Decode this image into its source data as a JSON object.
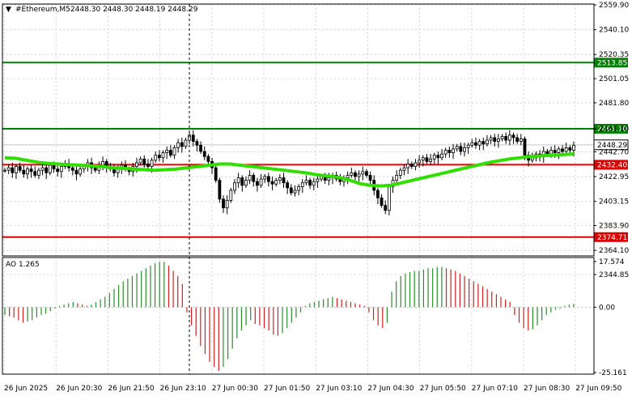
{
  "window": {
    "symbol": "#Ethereum,M5",
    "ohlc": "2448.30 2448.30 2448.19 2448.29",
    "menu_icon": "triangle-down-icon"
  },
  "colors": {
    "grid": "#c8c8c8",
    "candle": "#000000",
    "ma_line": "#33dd00",
    "support": "#dd0000",
    "resistance": "#008000",
    "ao_up": "#2e8b2e",
    "ao_down": "#cc2222",
    "cursor": "#000000"
  },
  "chart_data": [
    {
      "type": "candlestick",
      "title": "#Ethereum,M5",
      "ylim": [
        2344.85,
        2559.9
      ],
      "y_ticks": [
        "2559.90",
        "2540.10",
        "2520.35",
        "2501.05",
        "2481.80",
        "2461.10",
        "2442.70",
        "2422.95",
        "2403.15",
        "2383.90",
        "2364.10",
        "2344.85"
      ],
      "current_price": "2448.29",
      "levels": [
        {
          "value": 2513.85,
          "label": "2513.85",
          "kind": "resistance"
        },
        {
          "value": 2461.1,
          "label": "2461.10",
          "kind": "resistance"
        },
        {
          "value": 2432.4,
          "label": "2432.40",
          "kind": "support"
        },
        {
          "value": 2374.71,
          "label": "2374.71",
          "kind": "support"
        }
      ],
      "close": [
        2428,
        2430,
        2426,
        2431,
        2428,
        2425,
        2429,
        2427,
        2424,
        2428,
        2430,
        2426,
        2432,
        2429,
        2427,
        2431,
        2433,
        2430,
        2428,
        2425,
        2429,
        2431,
        2434,
        2430,
        2428,
        2432,
        2435,
        2431,
        2429,
        2426,
        2430,
        2432,
        2429,
        2427,
        2431,
        2434,
        2437,
        2433,
        2431,
        2436,
        2440,
        2438,
        2442,
        2444,
        2440,
        2446,
        2450,
        2447,
        2452,
        2456,
        2451,
        2448,
        2443,
        2439,
        2435,
        2430,
        2420,
        2405,
        2398,
        2404,
        2412,
        2418,
        2422,
        2416,
        2420,
        2424,
        2419,
        2416,
        2421,
        2423,
        2419,
        2417,
        2420,
        2422,
        2418,
        2414,
        2410,
        2412,
        2415,
        2418,
        2420,
        2416,
        2419,
        2421,
        2423,
        2420,
        2422,
        2424,
        2421,
        2419,
        2422,
        2424,
        2426,
        2423,
        2425,
        2427,
        2424,
        2420,
        2412,
        2406,
        2400,
        2396,
        2415,
        2420,
        2424,
        2428,
        2430,
        2433,
        2431,
        2434,
        2436,
        2438,
        2435,
        2437,
        2440,
        2438,
        2441,
        2444,
        2442,
        2445,
        2447,
        2443,
        2446,
        2448,
        2450,
        2448,
        2451,
        2449,
        2452,
        2454,
        2451,
        2453,
        2455,
        2452,
        2456,
        2454,
        2451,
        2453,
        2440,
        2436,
        2438,
        2441,
        2439,
        2443,
        2441,
        2444,
        2442,
        2445,
        2443,
        2446,
        2444,
        2448
      ],
      "ma": [
        2438.0,
        2437.5,
        2436.0,
        2434.5,
        2433.5,
        2433.0,
        2432.5,
        2432.0,
        2431.5,
        2431.0,
        2430.0,
        2429.5,
        2429.0,
        2428.5,
        2428.0,
        2428.5,
        2429.0,
        2430.0,
        2431.0,
        2432.0,
        2433.0,
        2433.0,
        2432.0,
        2431.0,
        2430.0,
        2429.0,
        2428.0,
        2427.0,
        2426.0,
        2424.5,
        2423.5,
        2422.5,
        2420.5,
        2417.5,
        2416.0,
        2415.5,
        2416.0,
        2418.0,
        2420.0,
        2422.0,
        2424.0,
        2426.0,
        2428.0,
        2430.0,
        2432.0,
        2434.0,
        2435.5,
        2437.0,
        2438.0,
        2439.0,
        2439.5,
        2440.0,
        2440.5,
        2441.0
      ],
      "x_tick_labels": [
        "26 Jun 2025",
        "26 Jun 20:30",
        "26 Jun 21:50",
        "26 Jun 23:10",
        "27 Jun 00:30",
        "27 Jun 01:50",
        "27 Jun 03:10",
        "27 Jun 04:30",
        "27 Jun 05:50",
        "27 Jun 07:10",
        "27 Jun 08:30",
        "27 Jun 09:50"
      ]
    },
    {
      "type": "bar",
      "title": "AO 1.265",
      "ylim": [
        -25.161,
        17.574
      ],
      "y_ticks": [
        "17.574",
        "0.00",
        "-25.161"
      ],
      "values": [
        -3,
        -3.5,
        -4,
        -5,
        -6,
        -5.5,
        -5,
        -4,
        -3,
        -2.5,
        -1.5,
        -0.5,
        0.5,
        1,
        1.5,
        2,
        1.5,
        1,
        0.5,
        1,
        2,
        3,
        4,
        5.5,
        7,
        8.5,
        10,
        11,
        12,
        13,
        14,
        15,
        16,
        17,
        17.5,
        17.5,
        16,
        14,
        12,
        9,
        -2,
        -7,
        -11,
        -15,
        -18,
        -21,
        -23,
        -24.5,
        -23,
        -20,
        -16,
        -12,
        -9,
        -7,
        -5,
        -6.5,
        -7,
        -8,
        -9,
        -10.5,
        -11,
        -10,
        -8,
        -6,
        -4,
        -2,
        0.5,
        1.5,
        2,
        2.5,
        3,
        3.5,
        4,
        3.5,
        3,
        2.5,
        2,
        1.5,
        1,
        0.5,
        -2,
        -5,
        -7,
        -8,
        -6,
        6,
        10,
        12,
        13,
        13.5,
        14,
        14,
        14.5,
        15,
        15,
        15.5,
        15.5,
        15,
        14.5,
        14,
        13,
        12,
        11,
        10,
        9,
        8,
        7,
        6,
        5,
        4,
        3,
        2,
        -3,
        -6,
        -8,
        -9,
        -8.5,
        -7,
        -5,
        -3,
        -2,
        -1,
        -0.5,
        0.5,
        1,
        1.265
      ]
    }
  ],
  "ao_panel": {
    "label": "AO 1.265"
  }
}
